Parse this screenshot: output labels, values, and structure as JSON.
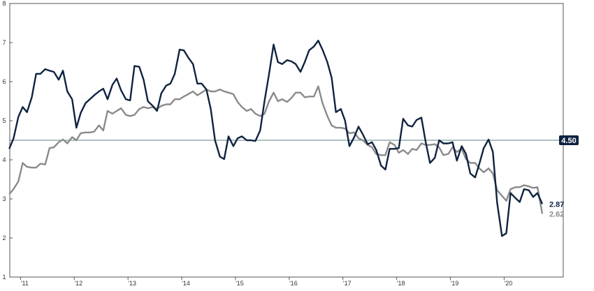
{
  "chart_data": {
    "type": "line",
    "title": "",
    "xlabel": "",
    "ylabel": "",
    "xlim": [
      2010.8,
      2021.1
    ],
    "ylim": [
      1,
      8
    ],
    "grid": false,
    "y_ticks": [
      "1",
      "2",
      "3",
      "4",
      "5",
      "6",
      "7",
      "8"
    ],
    "x_ticks": [
      {
        "label": "'11",
        "x": 2011.0
      },
      {
        "label": "'12",
        "x": 2012.0
      },
      {
        "label": "'13",
        "x": 2013.0
      },
      {
        "label": "'14",
        "x": 2014.0
      },
      {
        "label": "'15",
        "x": 2015.0
      },
      {
        "label": "'16",
        "x": 2016.0
      },
      {
        "label": "'17",
        "x": 2017.0
      },
      {
        "label": "'18",
        "x": 2018.0
      },
      {
        "label": "'19",
        "x": 2019.0
      },
      {
        "label": "'20",
        "x": 2020.0
      }
    ],
    "reference_line": {
      "value": 4.5,
      "label": "4.50",
      "color": "#5f7f86"
    },
    "series": [
      {
        "color": "#0f2340",
        "end_label": "2.87",
        "points": [
          [
            2010.79,
            4.28
          ],
          [
            2010.87,
            4.55
          ],
          [
            2010.96,
            5.1
          ],
          [
            2011.04,
            5.35
          ],
          [
            2011.12,
            5.22
          ],
          [
            2011.21,
            5.6
          ],
          [
            2011.29,
            6.2
          ],
          [
            2011.37,
            6.2
          ],
          [
            2011.46,
            6.32
          ],
          [
            2011.54,
            6.28
          ],
          [
            2011.62,
            6.25
          ],
          [
            2011.71,
            6.05
          ],
          [
            2011.79,
            6.28
          ],
          [
            2011.87,
            5.75
          ],
          [
            2011.96,
            5.55
          ],
          [
            2012.04,
            4.82
          ],
          [
            2012.12,
            5.2
          ],
          [
            2012.21,
            5.45
          ],
          [
            2012.29,
            5.55
          ],
          [
            2012.37,
            5.65
          ],
          [
            2012.46,
            5.75
          ],
          [
            2012.54,
            5.82
          ],
          [
            2012.62,
            5.55
          ],
          [
            2012.71,
            5.92
          ],
          [
            2012.79,
            6.08
          ],
          [
            2012.87,
            5.78
          ],
          [
            2012.96,
            5.55
          ],
          [
            2013.04,
            5.52
          ],
          [
            2013.12,
            6.4
          ],
          [
            2013.21,
            6.38
          ],
          [
            2013.29,
            6.05
          ],
          [
            2013.37,
            5.5
          ],
          [
            2013.46,
            5.38
          ],
          [
            2013.54,
            5.25
          ],
          [
            2013.62,
            5.7
          ],
          [
            2013.71,
            5.9
          ],
          [
            2013.79,
            5.95
          ],
          [
            2013.87,
            6.2
          ],
          [
            2013.96,
            6.82
          ],
          [
            2014.04,
            6.8
          ],
          [
            2014.12,
            6.62
          ],
          [
            2014.21,
            6.45
          ],
          [
            2014.29,
            5.95
          ],
          [
            2014.37,
            5.95
          ],
          [
            2014.46,
            5.8
          ],
          [
            2014.54,
            5.3
          ],
          [
            2014.62,
            4.5
          ],
          [
            2014.71,
            4.08
          ],
          [
            2014.79,
            4.02
          ],
          [
            2014.87,
            4.6
          ],
          [
            2014.96,
            4.35
          ],
          [
            2015.04,
            4.55
          ],
          [
            2015.12,
            4.6
          ],
          [
            2015.21,
            4.5
          ],
          [
            2015.29,
            4.5
          ],
          [
            2015.37,
            4.48
          ],
          [
            2015.46,
            4.75
          ],
          [
            2015.54,
            5.5
          ],
          [
            2015.62,
            6.15
          ],
          [
            2015.71,
            6.95
          ],
          [
            2015.79,
            6.5
          ],
          [
            2015.87,
            6.45
          ],
          [
            2015.96,
            6.55
          ],
          [
            2016.04,
            6.52
          ],
          [
            2016.12,
            6.45
          ],
          [
            2016.21,
            6.25
          ],
          [
            2016.29,
            6.5
          ],
          [
            2016.37,
            6.8
          ],
          [
            2016.46,
            6.9
          ],
          [
            2016.54,
            7.05
          ],
          [
            2016.62,
            6.82
          ],
          [
            2016.71,
            6.5
          ],
          [
            2016.79,
            6.1
          ],
          [
            2016.87,
            5.22
          ],
          [
            2016.96,
            5.3
          ],
          [
            2017.04,
            5.0
          ],
          [
            2017.12,
            4.35
          ],
          [
            2017.21,
            4.58
          ],
          [
            2017.29,
            4.85
          ],
          [
            2017.37,
            4.65
          ],
          [
            2017.46,
            4.4
          ],
          [
            2017.54,
            4.45
          ],
          [
            2017.62,
            4.25
          ],
          [
            2017.71,
            3.85
          ],
          [
            2017.79,
            3.75
          ],
          [
            2017.87,
            4.28
          ],
          [
            2017.96,
            4.28
          ],
          [
            2018.04,
            4.3
          ],
          [
            2018.12,
            5.05
          ],
          [
            2018.21,
            4.88
          ],
          [
            2018.29,
            4.85
          ],
          [
            2018.37,
            5.02
          ],
          [
            2018.46,
            5.08
          ],
          [
            2018.54,
            4.45
          ],
          [
            2018.62,
            3.92
          ],
          [
            2018.71,
            4.05
          ],
          [
            2018.79,
            4.5
          ],
          [
            2018.87,
            4.42
          ],
          [
            2018.96,
            4.42
          ],
          [
            2019.04,
            4.45
          ],
          [
            2019.12,
            3.98
          ],
          [
            2019.21,
            4.35
          ],
          [
            2019.29,
            4.15
          ],
          [
            2019.37,
            3.65
          ],
          [
            2019.46,
            3.55
          ],
          [
            2019.54,
            3.9
          ],
          [
            2019.62,
            4.3
          ],
          [
            2019.71,
            4.52
          ],
          [
            2019.79,
            4.2
          ],
          [
            2019.87,
            2.9
          ],
          [
            2019.96,
            2.05
          ],
          [
            2020.04,
            2.12
          ],
          [
            2020.12,
            3.15
          ],
          [
            2020.21,
            3.02
          ],
          [
            2020.29,
            2.92
          ],
          [
            2020.37,
            3.25
          ],
          [
            2020.46,
            3.22
          ],
          [
            2020.54,
            3.05
          ],
          [
            2020.62,
            3.15
          ],
          [
            2020.71,
            2.87
          ]
        ]
      },
      {
        "color": "#8a8a8a",
        "end_label": "2.62",
        "points": [
          [
            2010.79,
            3.12
          ],
          [
            2010.87,
            3.25
          ],
          [
            2010.96,
            3.45
          ],
          [
            2011.04,
            3.92
          ],
          [
            2011.12,
            3.82
          ],
          [
            2011.21,
            3.8
          ],
          [
            2011.29,
            3.8
          ],
          [
            2011.37,
            3.9
          ],
          [
            2011.46,
            3.88
          ],
          [
            2011.54,
            4.3
          ],
          [
            2011.62,
            4.32
          ],
          [
            2011.71,
            4.45
          ],
          [
            2011.79,
            4.52
          ],
          [
            2011.87,
            4.42
          ],
          [
            2011.96,
            4.58
          ],
          [
            2012.04,
            4.5
          ],
          [
            2012.12,
            4.68
          ],
          [
            2012.21,
            4.7
          ],
          [
            2012.29,
            4.7
          ],
          [
            2012.37,
            4.72
          ],
          [
            2012.46,
            4.88
          ],
          [
            2012.54,
            4.75
          ],
          [
            2012.62,
            5.25
          ],
          [
            2012.71,
            5.18
          ],
          [
            2012.79,
            5.25
          ],
          [
            2012.87,
            5.32
          ],
          [
            2012.96,
            5.15
          ],
          [
            2013.04,
            5.12
          ],
          [
            2013.12,
            5.15
          ],
          [
            2013.21,
            5.3
          ],
          [
            2013.29,
            5.35
          ],
          [
            2013.37,
            5.32
          ],
          [
            2013.46,
            5.35
          ],
          [
            2013.54,
            5.3
          ],
          [
            2013.62,
            5.38
          ],
          [
            2013.71,
            5.42
          ],
          [
            2013.79,
            5.42
          ],
          [
            2013.87,
            5.55
          ],
          [
            2013.96,
            5.55
          ],
          [
            2014.04,
            5.62
          ],
          [
            2014.12,
            5.68
          ],
          [
            2014.21,
            5.75
          ],
          [
            2014.29,
            5.65
          ],
          [
            2014.37,
            5.72
          ],
          [
            2014.46,
            5.8
          ],
          [
            2014.54,
            5.75
          ],
          [
            2014.62,
            5.75
          ],
          [
            2014.71,
            5.8
          ],
          [
            2014.79,
            5.75
          ],
          [
            2014.87,
            5.72
          ],
          [
            2014.96,
            5.68
          ],
          [
            2015.04,
            5.48
          ],
          [
            2015.12,
            5.35
          ],
          [
            2015.21,
            5.25
          ],
          [
            2015.29,
            5.3
          ],
          [
            2015.37,
            5.18
          ],
          [
            2015.46,
            5.12
          ],
          [
            2015.54,
            5.18
          ],
          [
            2015.62,
            5.48
          ],
          [
            2015.71,
            5.72
          ],
          [
            2015.79,
            5.5
          ],
          [
            2015.87,
            5.55
          ],
          [
            2015.96,
            5.48
          ],
          [
            2016.04,
            5.58
          ],
          [
            2016.12,
            5.72
          ],
          [
            2016.21,
            5.72
          ],
          [
            2016.29,
            5.6
          ],
          [
            2016.37,
            5.62
          ],
          [
            2016.46,
            5.62
          ],
          [
            2016.54,
            5.88
          ],
          [
            2016.62,
            5.45
          ],
          [
            2016.71,
            5.12
          ],
          [
            2016.79,
            4.88
          ],
          [
            2016.87,
            4.82
          ],
          [
            2016.96,
            4.82
          ],
          [
            2017.04,
            4.8
          ],
          [
            2017.12,
            4.68
          ],
          [
            2017.21,
            4.7
          ],
          [
            2017.29,
            4.55
          ],
          [
            2017.37,
            4.5
          ],
          [
            2017.46,
            4.38
          ],
          [
            2017.54,
            4.32
          ],
          [
            2017.62,
            4.15
          ],
          [
            2017.71,
            4.12
          ],
          [
            2017.79,
            4.12
          ],
          [
            2017.87,
            4.45
          ],
          [
            2017.96,
            4.38
          ],
          [
            2018.04,
            4.18
          ],
          [
            2018.12,
            4.25
          ],
          [
            2018.21,
            4.15
          ],
          [
            2018.29,
            4.28
          ],
          [
            2018.37,
            4.25
          ],
          [
            2018.46,
            4.42
          ],
          [
            2018.54,
            4.38
          ],
          [
            2018.62,
            4.38
          ],
          [
            2018.71,
            4.4
          ],
          [
            2018.79,
            4.32
          ],
          [
            2018.87,
            4.12
          ],
          [
            2018.96,
            4.15
          ],
          [
            2019.04,
            4.32
          ],
          [
            2019.12,
            4.2
          ],
          [
            2019.21,
            4.28
          ],
          [
            2019.29,
            4.02
          ],
          [
            2019.37,
            3.92
          ],
          [
            2019.46,
            3.92
          ],
          [
            2019.54,
            3.78
          ],
          [
            2019.62,
            3.68
          ],
          [
            2019.71,
            3.78
          ],
          [
            2019.79,
            3.65
          ],
          [
            2019.87,
            3.22
          ],
          [
            2019.96,
            3.08
          ],
          [
            2020.04,
            2.95
          ],
          [
            2020.12,
            3.25
          ],
          [
            2020.21,
            3.3
          ],
          [
            2020.29,
            3.3
          ],
          [
            2020.37,
            3.35
          ],
          [
            2020.46,
            3.32
          ],
          [
            2020.54,
            3.28
          ],
          [
            2020.62,
            3.3
          ],
          [
            2020.71,
            2.62
          ]
        ]
      }
    ]
  }
}
